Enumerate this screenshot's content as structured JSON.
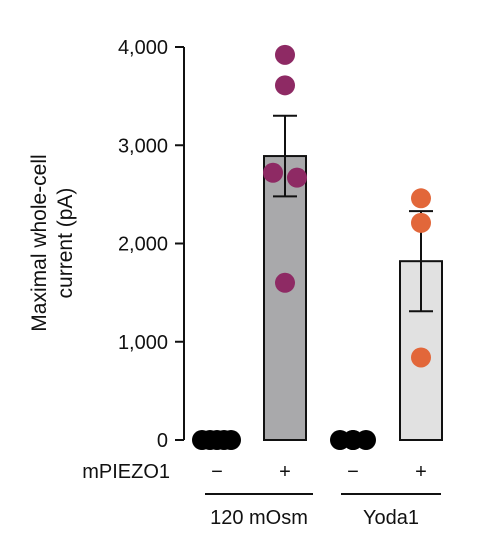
{
  "chart_data": {
    "type": "bar",
    "ylabel": "Maximal whole-cell current (pA)",
    "ylabel_lines": [
      "Maximal whole-cell",
      "current (pA)"
    ],
    "ylim": [
      0,
      4000
    ],
    "yticks": [
      0,
      1000,
      2000,
      3000,
      4000
    ],
    "ytick_labels": [
      "0",
      "1,000",
      "2,000",
      "3,000",
      "4,000"
    ],
    "row_label": "mPIEZO1",
    "groups": [
      {
        "label": "120 mOsm",
        "bars": [
          {
            "mpiezo1": "−",
            "mean": 0,
            "sem": 0,
            "fill": "#ffffff",
            "point_color": "#000000",
            "points": [
              0,
              0,
              0,
              0,
              0
            ]
          },
          {
            "mpiezo1": "+",
            "mean": 2890,
            "sem": 410,
            "fill": "#a9a9ab",
            "point_color": "#8e2a64",
            "points": [
              3920,
              3610,
              2720,
              2670,
              1600
            ]
          }
        ]
      },
      {
        "label": "Yoda1",
        "bars": [
          {
            "mpiezo1": "−",
            "mean": 0,
            "sem": 0,
            "fill": "#ffffff",
            "point_color": "#000000",
            "points": [
              0,
              0,
              0,
              0
            ]
          },
          {
            "mpiezo1": "+",
            "mean": 1820,
            "sem": 510,
            "fill": "#e1e1e1",
            "point_color": "#e2673a",
            "points": [
              2460,
              2210,
              840
            ]
          }
        ]
      }
    ],
    "grid": false,
    "legend": "none"
  }
}
